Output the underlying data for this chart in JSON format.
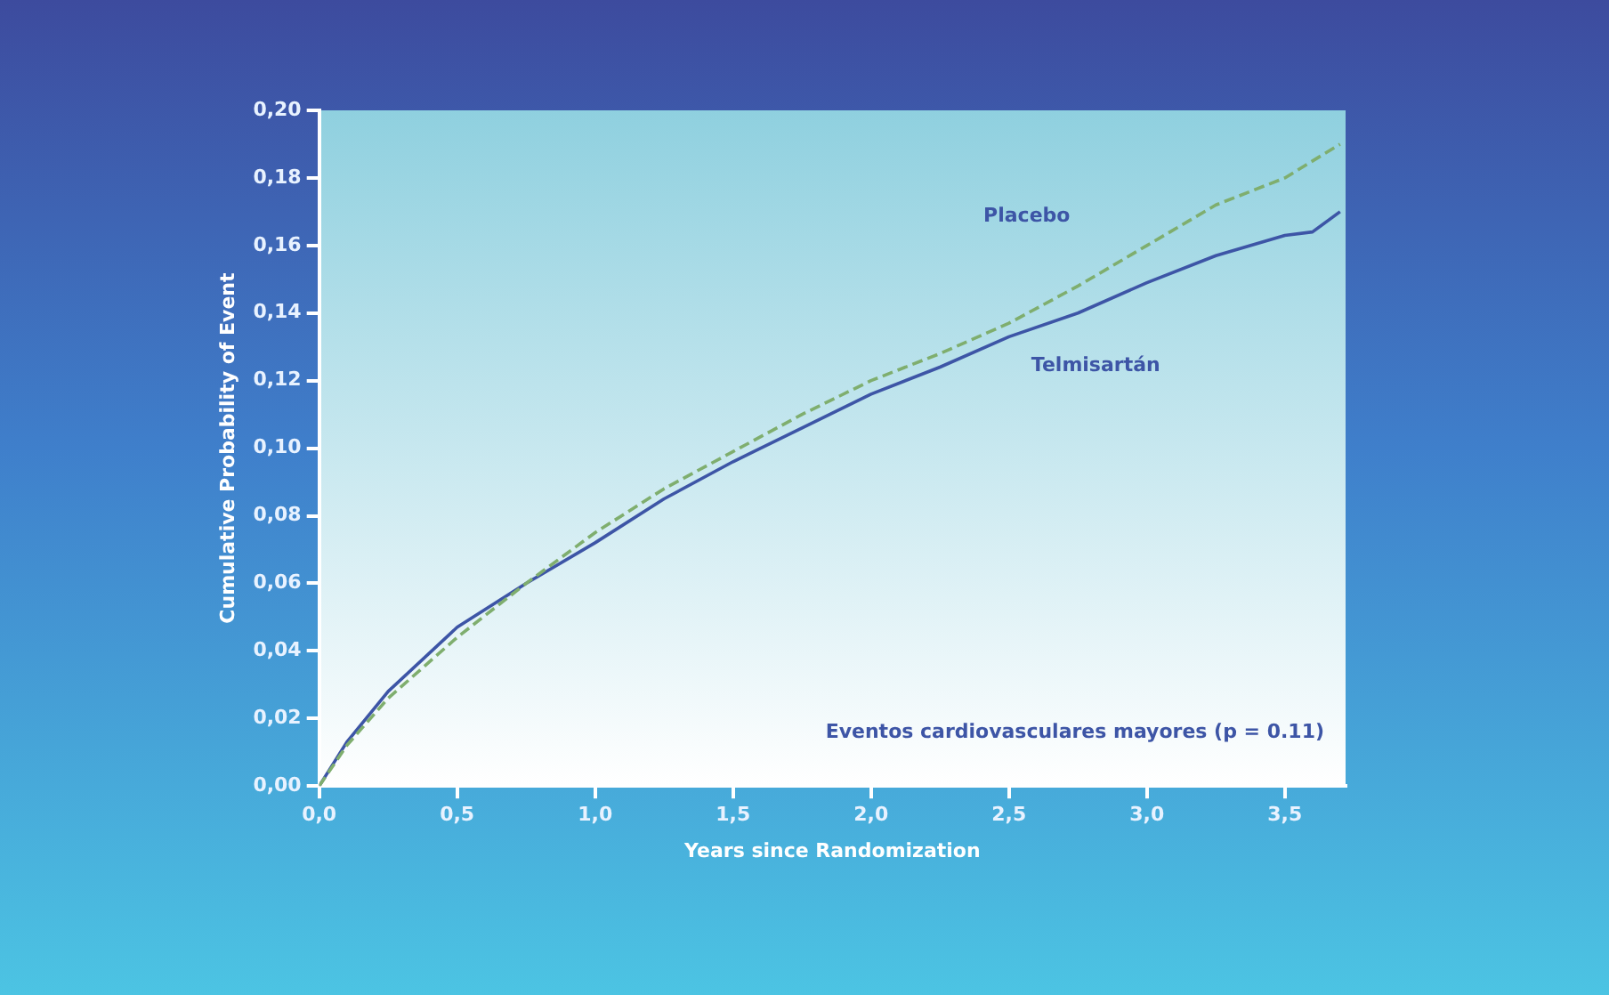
{
  "chart_data": {
    "type": "line",
    "xlabel": "Years since Randomization",
    "ylabel": "Cumulative Probability of Event",
    "annotations": [
      "Eventos cardiovasculares mayores (p = 0.11)"
    ],
    "series": [
      {
        "name": "Placebo",
        "color": "#7fae6e",
        "line_style": "dashed",
        "x": [
          0,
          0.1,
          0.25,
          0.5,
          0.75,
          1.0,
          1.25,
          1.5,
          1.75,
          2.0,
          2.25,
          2.5,
          2.75,
          3.0,
          3.25,
          3.5,
          3.7
        ],
        "values": [
          0,
          0.012,
          0.026,
          0.044,
          0.06,
          0.075,
          0.088,
          0.099,
          0.11,
          0.12,
          0.128,
          0.137,
          0.148,
          0.16,
          0.172,
          0.18,
          0.19
        ]
      },
      {
        "name": "Telmisartán",
        "color": "#3d55a6",
        "line_style": "solid",
        "x": [
          0,
          0.1,
          0.25,
          0.5,
          0.75,
          1.0,
          1.25,
          1.5,
          1.75,
          2.0,
          2.25,
          2.5,
          2.75,
          3.0,
          3.25,
          3.5,
          3.6,
          3.7
        ],
        "values": [
          0,
          0.013,
          0.028,
          0.047,
          0.06,
          0.072,
          0.085,
          0.096,
          0.106,
          0.116,
          0.124,
          0.133,
          0.14,
          0.149,
          0.157,
          0.163,
          0.164,
          0.17
        ]
      }
    ],
    "xlim": [
      0,
      3.72
    ],
    "xticks": [
      {
        "value": 0,
        "label": "0,0"
      },
      {
        "value": 0.5,
        "label": "0,5"
      },
      {
        "value": 1,
        "label": "1,0"
      },
      {
        "value": 1.5,
        "label": "1,5"
      },
      {
        "value": 2,
        "label": "2,0"
      },
      {
        "value": 2.5,
        "label": "2,5"
      },
      {
        "value": 3,
        "label": "3,0"
      },
      {
        "value": 3.5,
        "label": "3,5"
      }
    ],
    "ylim": [
      0,
      0.2
    ],
    "yticks": [
      {
        "value": 0,
        "label": "0,00"
      },
      {
        "value": 0.02,
        "label": "0,02"
      },
      {
        "value": 0.04,
        "label": "0,04"
      },
      {
        "value": 0.06,
        "label": "0,06"
      },
      {
        "value": 0.08,
        "label": "0,08"
      },
      {
        "value": 0.1,
        "label": "0,10"
      },
      {
        "value": 0.12,
        "label": "0,12"
      },
      {
        "value": 0.14,
        "label": "0,14"
      },
      {
        "value": 0.16,
        "label": "0,16"
      },
      {
        "value": 0.18,
        "label": "0,18"
      },
      {
        "value": 0.2,
        "label": "0,20"
      }
    ],
    "grid": false,
    "legend": false,
    "marker": "none"
  }
}
